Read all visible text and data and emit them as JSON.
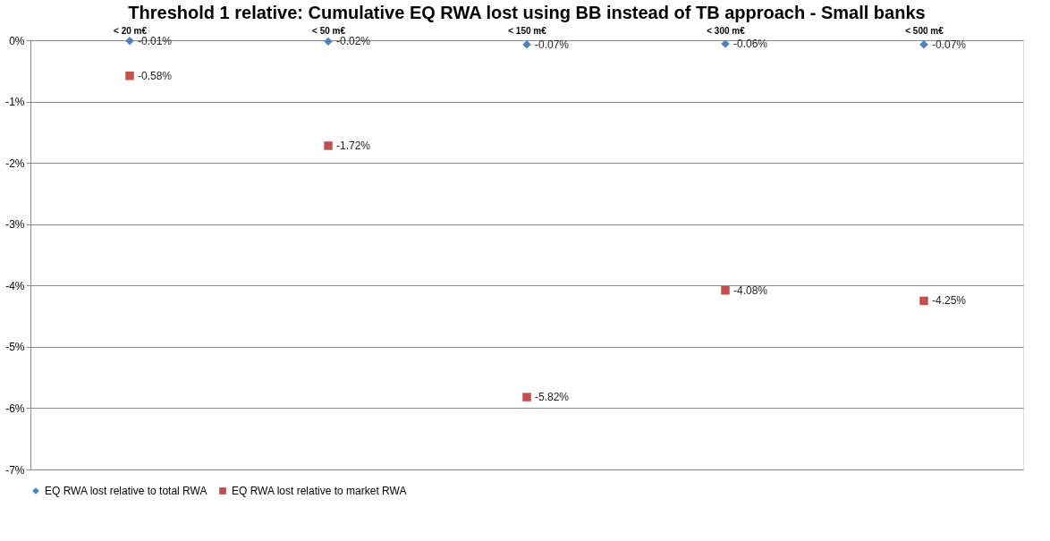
{
  "chart_data": {
    "type": "scatter",
    "title": "Threshold 1 relative: Cumulative EQ RWA lost using BB instead of TB approach - Small banks",
    "categories": [
      "< 20 m€",
      "< 50 m€",
      "< 150 m€",
      "< 300 m€",
      "< 500 m€"
    ],
    "series": [
      {
        "name": "EQ RWA lost relative to total RWA",
        "color": "#4f81bd",
        "marker": "diamond",
        "values": [
          -0.01,
          -0.02,
          -0.07,
          -0.06,
          -0.07
        ],
        "value_labels": [
          "-0.01%",
          "-0.02%",
          "-0.07%",
          "-0.06%",
          "-0.07%"
        ]
      },
      {
        "name": "EQ RWA lost relative to market RWA",
        "color": "#c0504d",
        "marker": "square",
        "values": [
          -0.58,
          -1.72,
          -5.82,
          -4.08,
          -4.25
        ],
        "value_labels": [
          "-0.58%",
          "-1.72%",
          "-5.82%",
          "-4.08%",
          "-4.25%"
        ]
      }
    ],
    "ylim": [
      -7,
      0
    ],
    "yticks": [
      {
        "value": 0,
        "label": "0%"
      },
      {
        "value": -1,
        "label": "-1%"
      },
      {
        "value": -2,
        "label": "-2%"
      },
      {
        "value": -3,
        "label": "-3%"
      },
      {
        "value": -4,
        "label": "-4%"
      },
      {
        "value": -5,
        "label": "-5%"
      },
      {
        "value": -6,
        "label": "-6%"
      },
      {
        "value": -7,
        "label": "-7%"
      }
    ],
    "grid": "y",
    "legend": "bottom"
  }
}
